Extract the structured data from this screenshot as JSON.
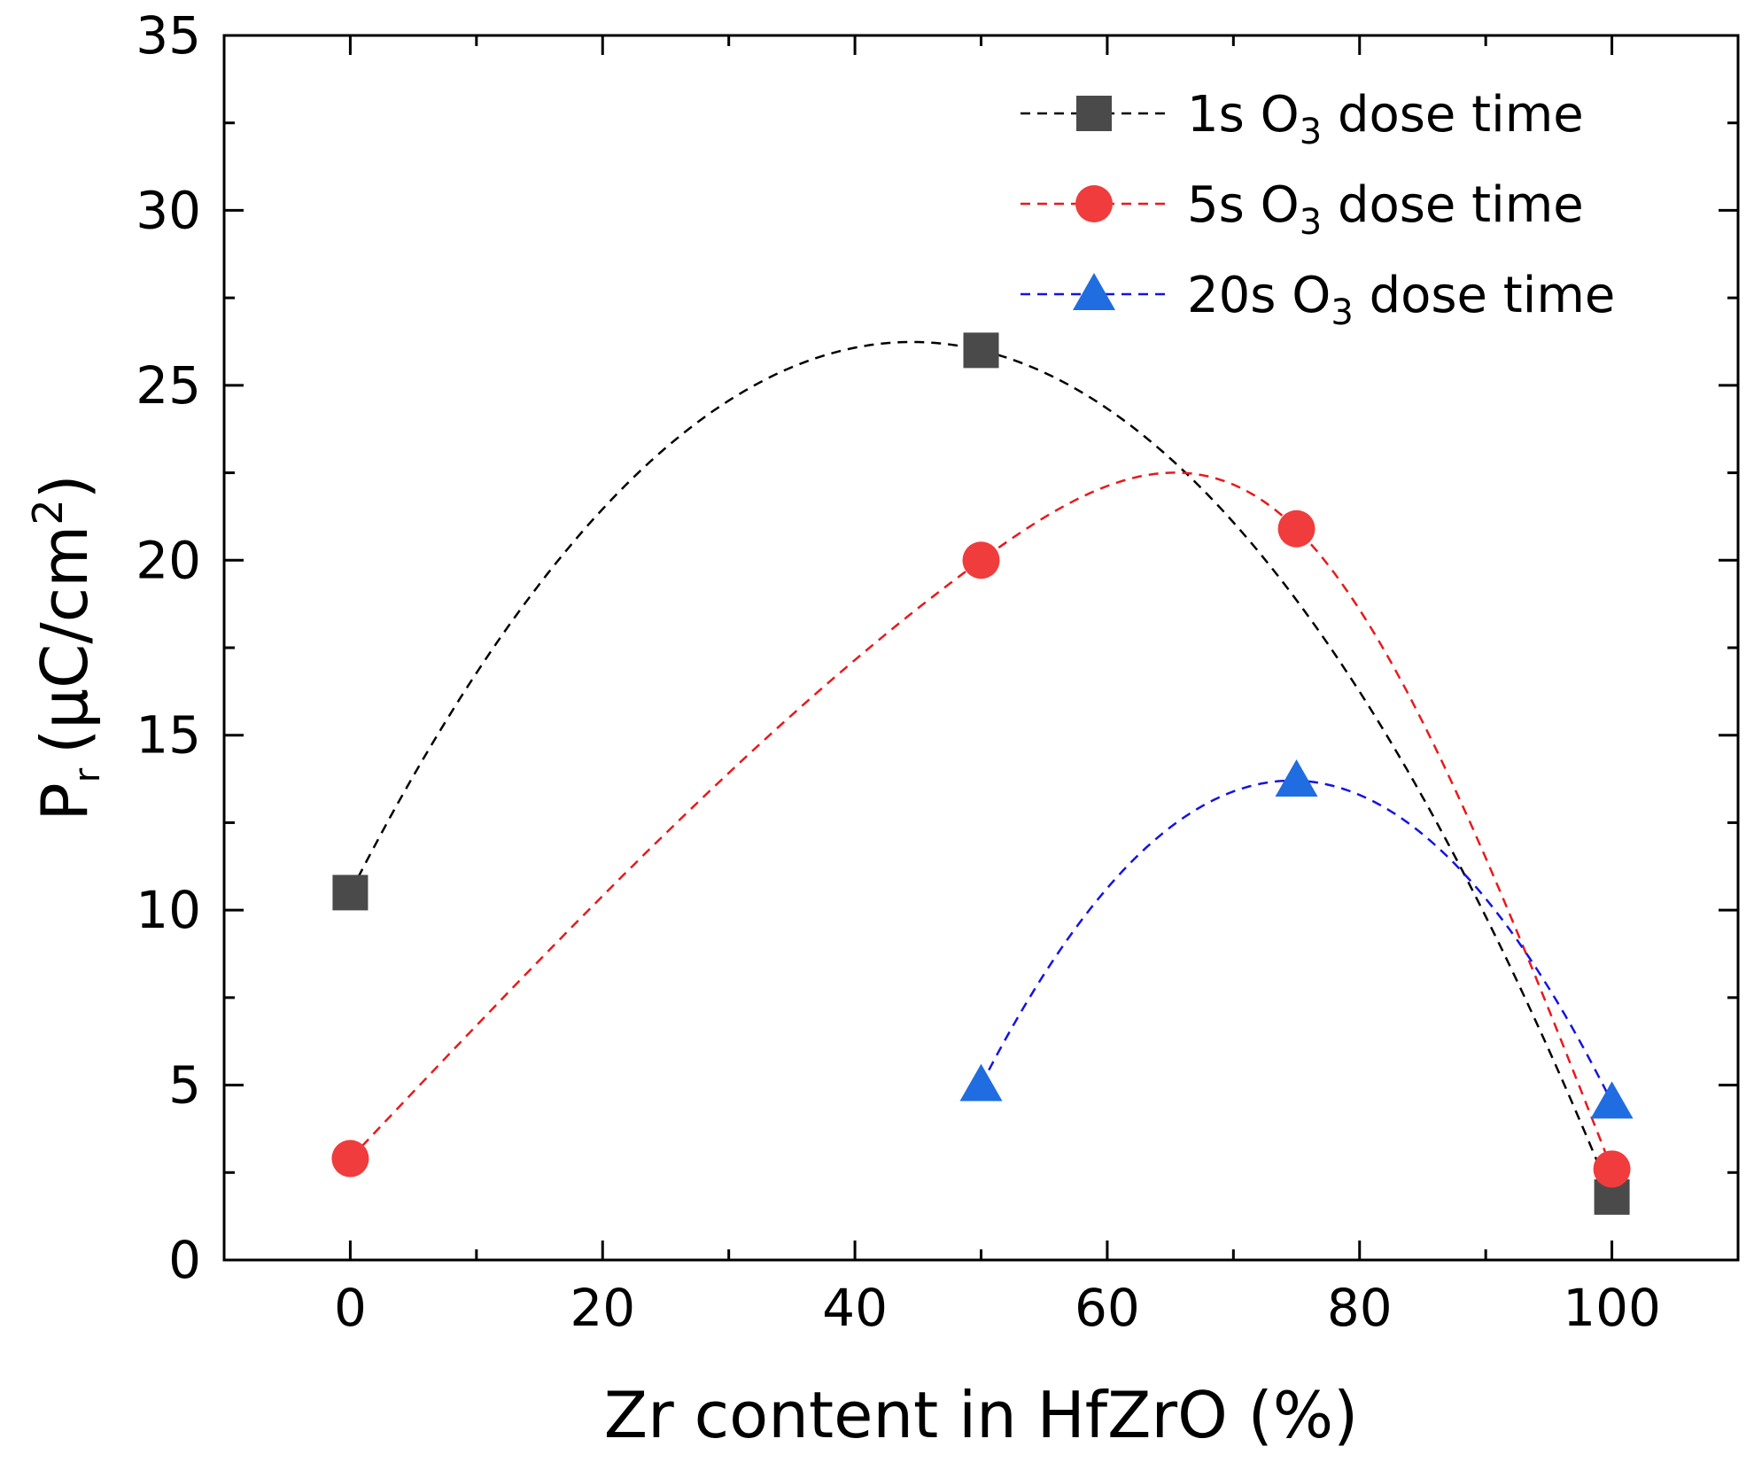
{
  "chart_data": {
    "type": "line",
    "title": "",
    "xlabel": "Zr content in HfZrO (%)",
    "ylabel": {
      "main": "P",
      "subscript": "r",
      "unit_before": "(µC/cm",
      "unit_superscript": "2",
      "unit_after": ")"
    },
    "xlim": [
      -10,
      110
    ],
    "ylim": [
      0,
      35
    ],
    "x_ticks": [
      0,
      20,
      40,
      60,
      80,
      100
    ],
    "x_tick_labels": [
      "0",
      "20",
      "40",
      "60",
      "80",
      "100"
    ],
    "x_minor_ticks": [
      -10,
      10,
      30,
      50,
      70,
      90,
      110
    ],
    "y_ticks": [
      0,
      5,
      10,
      15,
      20,
      25,
      30,
      35
    ],
    "y_tick_labels": [
      "0",
      "5",
      "10",
      "15",
      "20",
      "25",
      "30",
      "35"
    ],
    "y_minor_ticks": [
      2.5,
      7.5,
      12.5,
      17.5,
      22.5,
      27.5,
      32.5
    ],
    "grid": false,
    "legend_position": "top-right",
    "series": [
      {
        "id": "s1",
        "name_main": "1s O",
        "name_sub": "3",
        "name_rest": " dose time",
        "marker": "square",
        "color": "#4a4a4a",
        "line_color": "#000000",
        "x": [
          0,
          50,
          100
        ],
        "y": [
          10.5,
          26.0,
          1.8
        ]
      },
      {
        "id": "s2",
        "name_main": "5s O",
        "name_sub": "3",
        "name_rest": " dose time",
        "marker": "circle",
        "color": "#f03c3c",
        "line_color": "#e8191c",
        "x": [
          0,
          50,
          75,
          100
        ],
        "y": [
          2.9,
          20.0,
          20.9,
          2.6
        ]
      },
      {
        "id": "s3",
        "name_main": "20s O",
        "name_sub": "3",
        "name_rest": " dose time",
        "marker": "triangle",
        "color": "#1f6de0",
        "line_color": "#1414e0",
        "x": [
          50,
          75,
          100
        ],
        "y": [
          5.0,
          13.7,
          4.5
        ]
      }
    ]
  }
}
